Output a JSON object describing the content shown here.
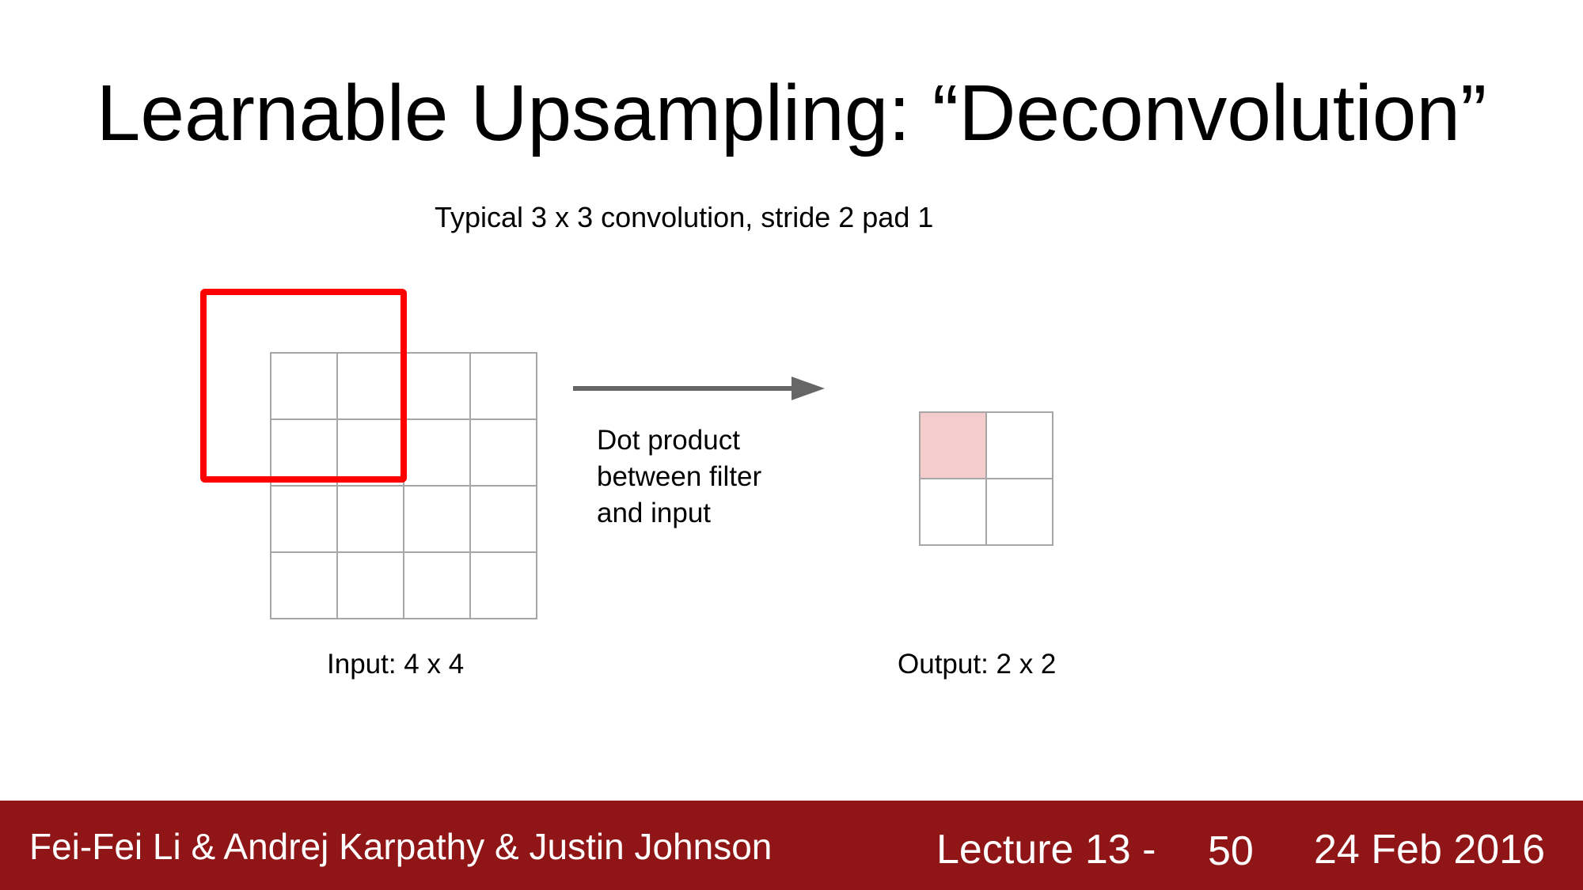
{
  "slide": {
    "title": "Learnable Upsampling: “Deconvolution”",
    "subtitle": "Typical 3 x 3 convolution, stride 2 pad 1"
  },
  "diagram": {
    "input_label": "Input: 4 x 4",
    "output_label": "Output: 2 x 2",
    "arrow_text": [
      "Dot product",
      "between filter",
      "and input"
    ],
    "input_grid": {
      "rows": 4,
      "cols": 4
    },
    "output_grid": {
      "rows": 2,
      "cols": 2,
      "highlighted_cell": [
        0,
        0
      ]
    },
    "colors": {
      "grid_line": "#a6a6a6",
      "filter_box": "#ff0000",
      "highlight_cell": "#f4cccc",
      "arrow": "#666666"
    }
  },
  "footer": {
    "authors": "Fei-Fei Li & Andrej Karpathy & Justin Johnson",
    "lecture": "Lecture 13 -",
    "page": "50",
    "date": "24 Feb 2016",
    "background": "#8f1517"
  }
}
